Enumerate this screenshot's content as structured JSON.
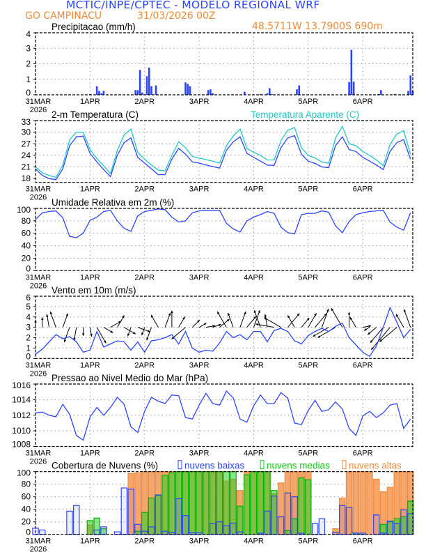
{
  "header": {
    "title": "MCTIC/INPE/CPTEC - MODELO REGIONAL WRF",
    "station": "GO CAMPINACU",
    "run": "31/03/2026 00Z",
    "location": "48.5711W 13.7900S 690m"
  },
  "x_axis": {
    "labels": [
      "31MAR",
      "1APR",
      "2APR",
      "3APR",
      "4APR",
      "5APR",
      "6APR"
    ],
    "label_hours": [
      0,
      24,
      48,
      72,
      96,
      120,
      144
    ],
    "year": "2026",
    "xlim_hours": [
      0,
      166
    ],
    "step_hours": 3
  },
  "colors": {
    "blue": "#2b45ff",
    "cyan": "#20c8c8",
    "orange": "#f08a3c",
    "green": "#10c810",
    "black": "#000000"
  },
  "chart_data": [
    {
      "type": "bar",
      "title": "Precipitacao (mm/h)",
      "ylim": [
        0,
        4
      ],
      "yticks": [
        0,
        1,
        2,
        3,
        4
      ],
      "bars": [
        [
          24,
          0.05
        ],
        [
          27,
          0.55
        ],
        [
          28,
          0.25
        ],
        [
          29,
          0.1
        ],
        [
          30,
          0.25
        ],
        [
          44,
          0.3
        ],
        [
          45,
          0.3
        ],
        [
          46,
          1.6
        ],
        [
          47,
          0.15
        ],
        [
          49,
          1.2
        ],
        [
          50,
          1.75
        ],
        [
          51,
          0.55
        ],
        [
          53,
          0.6
        ],
        [
          66,
          0.8
        ],
        [
          67,
          0.7
        ],
        [
          68,
          0.55
        ],
        [
          76,
          0.3
        ],
        [
          77,
          0.35
        ],
        [
          78,
          0.1
        ],
        [
          92,
          0.2
        ],
        [
          99,
          0.05
        ],
        [
          102,
          0.1
        ],
        [
          103,
          0.42
        ],
        [
          104,
          0.05
        ],
        [
          115,
          0.35
        ],
        [
          116,
          0.6
        ],
        [
          138,
          0.82
        ],
        [
          139,
          2.9
        ],
        [
          140,
          0.85
        ],
        [
          151,
          0.05
        ],
        [
          152,
          0.3
        ],
        [
          158,
          0.05
        ],
        [
          164,
          0.25
        ],
        [
          165,
          1.25
        ],
        [
          166,
          0.25
        ]
      ]
    },
    {
      "type": "line",
      "title": "2-m Temperatura (C)",
      "ylim": [
        17,
        33
      ],
      "yticks": [
        18,
        21,
        24,
        27,
        30,
        33
      ],
      "series": [
        {
          "name": "2-m Temperatura (C)",
          "color_key": "blue",
          "values": [
            20.5,
            18.8,
            18.0,
            17.7,
            20.5,
            26.5,
            28.8,
            29.0,
            24.5,
            22.3,
            20.3,
            18.5,
            24.0,
            27.3,
            28.5,
            23.5,
            22.0,
            20.5,
            19.0,
            19.0,
            23.0,
            25.8,
            24.3,
            22.3,
            22.0,
            21.5,
            21.1,
            20.7,
            25.3,
            27.5,
            28.8,
            24.5,
            23.5,
            22.5,
            21.5,
            21.4,
            26.0,
            28.5,
            29.1,
            24.3,
            22.5,
            21.9,
            21.0,
            20.8,
            26.5,
            28.8,
            25.5,
            25.0,
            23.5,
            22.5,
            21.5,
            20.3,
            25.0,
            27.3,
            28.1,
            23.0
          ]
        },
        {
          "name": "Temperatura Aparente (C)",
          "color_key": "cyan",
          "values": [
            21.0,
            19.5,
            18.8,
            18.3,
            21.5,
            28.0,
            30.0,
            30.0,
            25.5,
            23.2,
            21.3,
            19.3,
            25.3,
            29.3,
            30.8,
            24.8,
            23.0,
            21.5,
            20.2,
            20.0,
            24.0,
            27.5,
            26.0,
            23.7,
            23.3,
            22.9,
            22.5,
            22.0,
            26.5,
            29.0,
            30.8,
            25.8,
            24.8,
            24.0,
            22.8,
            22.8,
            27.8,
            30.5,
            31.2,
            26.0,
            24.0,
            23.3,
            22.3,
            21.9,
            28.5,
            31.5,
            27.0,
            26.5,
            25.0,
            24.0,
            22.8,
            21.3,
            26.8,
            29.5,
            30.4,
            24.3
          ]
        }
      ]
    },
    {
      "type": "line",
      "title": "Umidade Relativa em 2m (%)",
      "ylim": [
        0,
        100
      ],
      "yticks": [
        0,
        20,
        40,
        60,
        80,
        100
      ],
      "series": [
        {
          "name": "Umidade Relativa",
          "color_key": "blue",
          "values": [
            82,
            93,
            95,
            96,
            85,
            55,
            53,
            60,
            81,
            86,
            95,
            97,
            80,
            68,
            63,
            88,
            95,
            97,
            99,
            98,
            86,
            78,
            80,
            93,
            96,
            97,
            97,
            97,
            76,
            67,
            62,
            80,
            86,
            90,
            95,
            92,
            70,
            61,
            59,
            90,
            92,
            92,
            96,
            94,
            72,
            61,
            79,
            90,
            93,
            95,
            96,
            97,
            78,
            70,
            65,
            93
          ]
        }
      ]
    },
    {
      "type": "line",
      "title": "Vento em 10m (m/s)",
      "ylim": [
        0,
        6
      ],
      "yticks": [
        0,
        1,
        2,
        3,
        4,
        5,
        6
      ],
      "arrow_baseline": 3,
      "series": [
        {
          "name": "Velocidade",
          "color_key": "blue",
          "values": [
            0.4,
            0.9,
            1.6,
            2.3,
            1.9,
            2.1,
            1.6,
            0.6,
            0.8,
            2.6,
            1.1,
            1.4,
            1.7,
            1.6,
            0.8,
            1.6,
            0.6,
            1.7,
            1.8,
            2.0,
            2.3,
            1.4,
            2.6,
            1.0,
            0.6,
            0.8,
            0.7,
            1.5,
            2.6,
            2.0,
            2.3,
            1.8,
            2.6,
            2.6,
            1.6,
            2.7,
            2.9,
            2.6,
            1.7,
            1.4,
            2.2,
            2.6,
            2.9,
            2.6,
            3.1,
            3.4,
            2.0,
            1.3,
            0.6,
            0.2,
            1.2,
            3.0,
            4.9,
            3.5,
            2.0,
            2.8
          ]
        }
      ],
      "direction_deg": [
        0,
        0,
        350,
        340,
        20,
        200,
        190,
        180,
        170,
        150,
        120,
        60,
        30,
        120,
        200,
        110,
        200,
        200,
        330,
        20,
        0,
        30,
        230,
        45,
        60,
        80,
        70,
        50,
        330,
        340,
        20,
        40,
        20,
        340,
        350,
        280,
        300,
        40,
        330,
        40,
        30,
        40,
        20,
        240,
        240,
        330,
        0,
        330,
        80,
        240,
        230,
        220,
        220,
        230,
        330,
        340
      ]
    },
    {
      "type": "line",
      "title": "Pressao ao Nivel Medio do Mar (hPa)",
      "ylim": [
        1008,
        1016
      ],
      "yticks": [
        1008,
        1010,
        1012,
        1014,
        1016
      ],
      "series": [
        {
          "name": "Pressao",
          "color_key": "blue",
          "values": [
            1012.3,
            1012.4,
            1012.0,
            1011.8,
            1013.4,
            1012.1,
            1009.4,
            1008.8,
            1011.8,
            1013.0,
            1012.0,
            1013.0,
            1014.3,
            1013.4,
            1010.5,
            1009.8,
            1012.5,
            1014.3,
            1013.8,
            1013.5,
            1014.6,
            1014.5,
            1011.7,
            1011.5,
            1013.3,
            1014.8,
            1013.5,
            1013.3,
            1015.1,
            1014.2,
            1011.5,
            1011.1,
            1013.2,
            1014.6,
            1013.5,
            1013.5,
            1014.9,
            1014.2,
            1011.0,
            1010.8,
            1012.6,
            1013.9,
            1012.5,
            1012.7,
            1013.7,
            1012.8,
            1010.3,
            1009.4,
            1011.9,
            1012.5,
            1011.7,
            1012.3,
            1013.3,
            1013.5,
            1010.3,
            1011.5
          ]
        }
      ]
    },
    {
      "type": "bar",
      "title": "Cobertura de Nuvens (%)",
      "ylim": [
        0,
        100
      ],
      "yticks": [
        0,
        20,
        40,
        60,
        80,
        100
      ],
      "series": [
        {
          "name": "nuvens altas",
          "color_key": "orange",
          "values": [
            0,
            0,
            0,
            0,
            0,
            0,
            0,
            0,
            15,
            0,
            0,
            0,
            0,
            0,
            97,
            98,
            100,
            100,
            100,
            100,
            100,
            100,
            100,
            100,
            100,
            100,
            100,
            100,
            85,
            88,
            70,
            100,
            100,
            100,
            100,
            65,
            82,
            100,
            100,
            100,
            100,
            0,
            0,
            0,
            9,
            58,
            100,
            100,
            100,
            100,
            88,
            68,
            75,
            100,
            100,
            100
          ]
        },
        {
          "name": "nuvens medias",
          "color_key": "green",
          "values": [
            0,
            0,
            0,
            0,
            0,
            0,
            0,
            0,
            22,
            26,
            9,
            0,
            0,
            0,
            0,
            5,
            35,
            58,
            62,
            94,
            98,
            100,
            100,
            100,
            100,
            100,
            100,
            100,
            100,
            100,
            45,
            95,
            100,
            100,
            100,
            70,
            0,
            6,
            25,
            90,
            87,
            0,
            0,
            0,
            0,
            0,
            0,
            2,
            0,
            0,
            0,
            16,
            20,
            25,
            28,
            53
          ]
        },
        {
          "name": "nuvens baixas",
          "color_key": "blue",
          "values": [
            10,
            7,
            0,
            0,
            0,
            37,
            46,
            0,
            0,
            7,
            12,
            0,
            4,
            74,
            72,
            16,
            5,
            12,
            63,
            5,
            3,
            57,
            30,
            3,
            3,
            0,
            17,
            20,
            14,
            18,
            4,
            0,
            0,
            2,
            37,
            61,
            28,
            66,
            60,
            2,
            0,
            17,
            25,
            0,
            3,
            46,
            43,
            2,
            2,
            0,
            31,
            2,
            21,
            17,
            39,
            33
          ]
        }
      ],
      "legend_order": [
        "nuvens baixas",
        "nuvens medias",
        "nuvens altas"
      ]
    }
  ]
}
